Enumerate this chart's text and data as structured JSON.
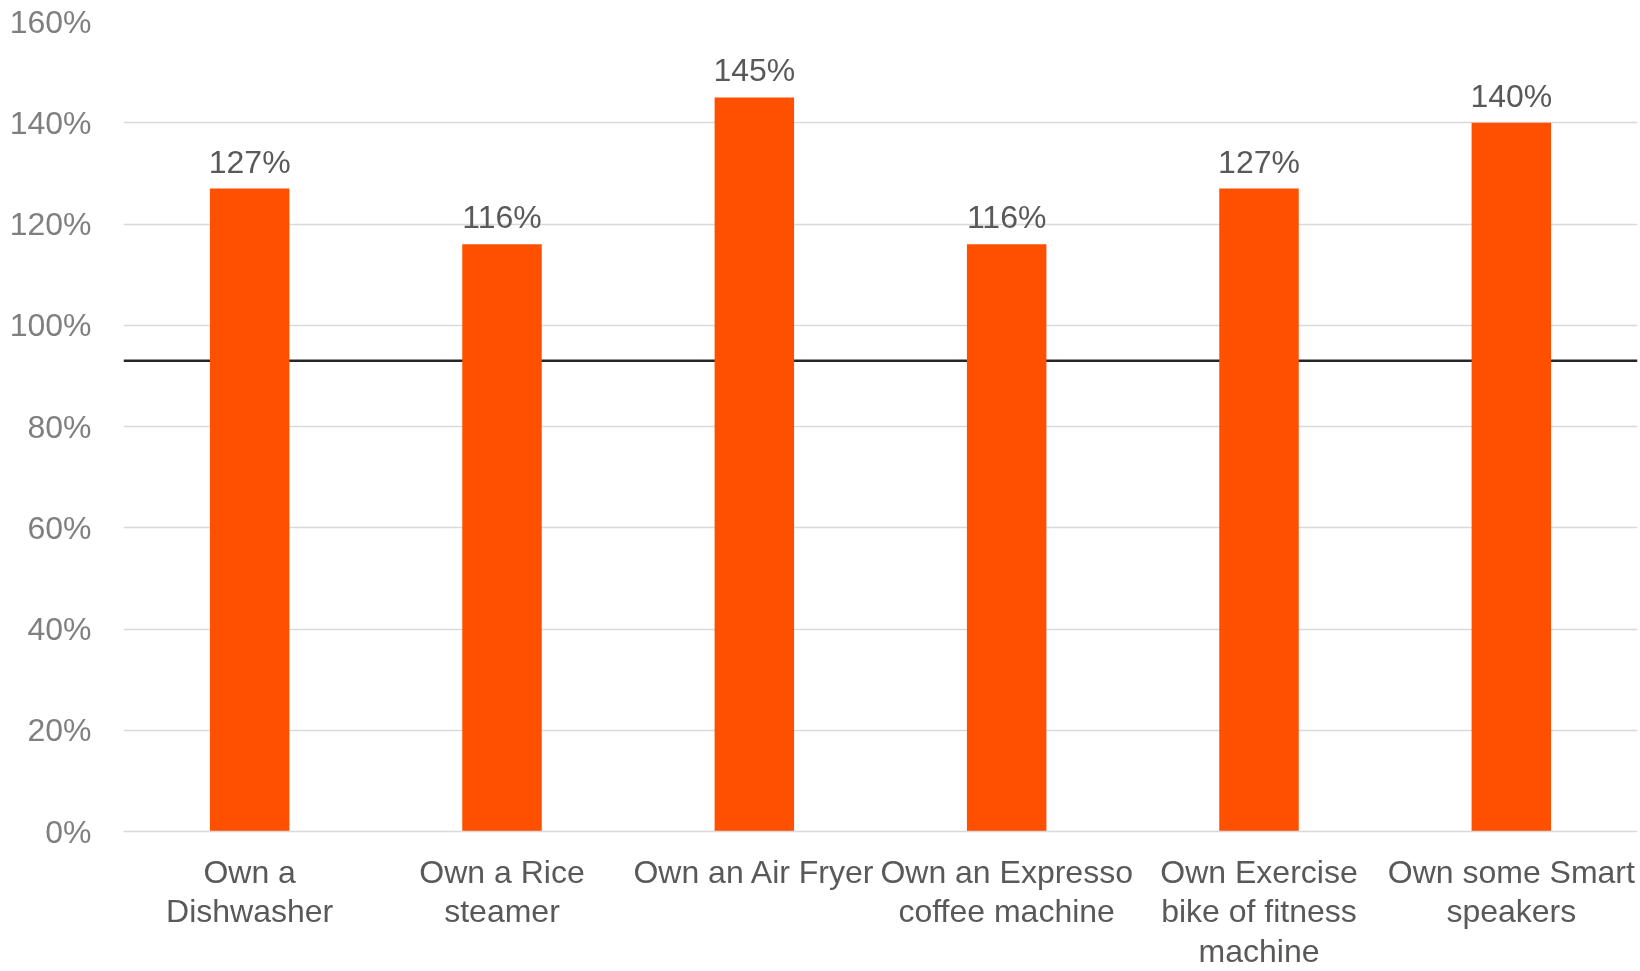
{
  "chart_data": {
    "type": "bar",
    "categories": [
      "Own a\nDishwasher",
      "Own a Rice\nsteamer",
      "Own an Air Fryer",
      "Own an Expresso\ncoffee machine",
      "Own Exercise\nbike of fitness\nmachine",
      "Own some Smart\nspeakers"
    ],
    "values": [
      127,
      116,
      145,
      116,
      127,
      140
    ],
    "value_labels": [
      "127%",
      "116%",
      "145%",
      "116%",
      "127%",
      "140%"
    ],
    "color": "#ff5000",
    "ylim": [
      0,
      160
    ],
    "yticks": [
      {
        "value": 0,
        "label": "0%"
      },
      {
        "value": 20,
        "label": "20%"
      },
      {
        "value": 40,
        "label": "40%"
      },
      {
        "value": 60,
        "label": "60%"
      },
      {
        "value": 80,
        "label": "80%"
      },
      {
        "value": 100,
        "label": "100%"
      },
      {
        "value": 120,
        "label": "120%"
      },
      {
        "value": 140,
        "label": "140%"
      },
      {
        "value": 160,
        "label": "160%"
      }
    ],
    "grid": "y",
    "ref_lines": [
      {
        "axis": "y",
        "value": 93,
        "color": "#262626"
      }
    ]
  }
}
